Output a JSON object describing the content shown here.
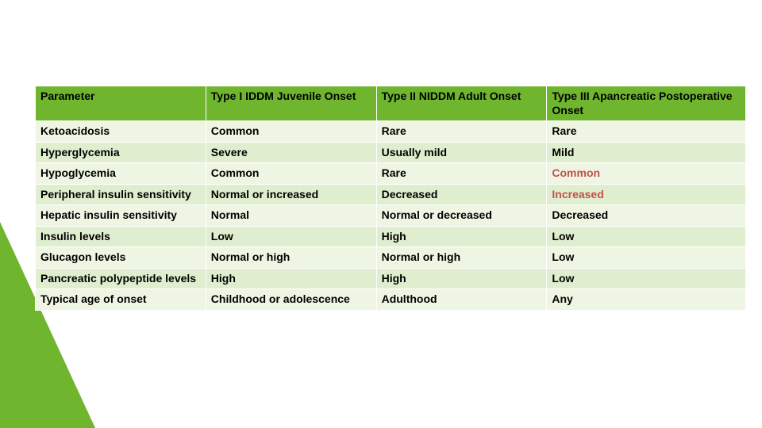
{
  "theme": {
    "accent_green": "#6fb52e",
    "row_odd_bg": "#eef6e3",
    "row_even_bg": "#dfeece",
    "accent_text": "#c0504d",
    "text_color": "#000000",
    "background": "#ffffff",
    "font_family": "Verdana",
    "header_font_size_pt": 11,
    "cell_font_size_pt": 11
  },
  "table": {
    "type": "table",
    "column_widths_pct": [
      24,
      24,
      24,
      28
    ],
    "columns": [
      "Parameter",
      "Type I IDDM Juvenile Onset",
      "Type II NIDDM Adult Onset",
      "Type III Apancreatic Postoperative Onset"
    ],
    "rows": [
      {
        "cells": [
          "Ketoacidosis",
          "Common",
          "Rare",
          "Rare"
        ],
        "accent": [
          false,
          false,
          false,
          false
        ]
      },
      {
        "cells": [
          "Hyperglycemia",
          "Severe",
          "Usually mild",
          "Mild"
        ],
        "accent": [
          false,
          false,
          false,
          false
        ]
      },
      {
        "cells": [
          "Hypoglycemia",
          "Common",
          "Rare",
          "Common"
        ],
        "accent": [
          false,
          false,
          false,
          true
        ]
      },
      {
        "cells": [
          "Peripheral insulin sensitivity",
          "Normal or increased",
          "Decreased",
          "Increased"
        ],
        "accent": [
          false,
          false,
          false,
          true
        ]
      },
      {
        "cells": [
          "Hepatic insulin sensitivity",
          "Normal",
          "Normal or decreased",
          "Decreased"
        ],
        "accent": [
          false,
          false,
          false,
          false
        ]
      },
      {
        "cells": [
          "Insulin levels",
          "Low",
          "High",
          "Low"
        ],
        "accent": [
          false,
          false,
          false,
          false
        ]
      },
      {
        "cells": [
          "Glucagon levels",
          "Normal or high",
          "Normal or high",
          "Low"
        ],
        "accent": [
          false,
          false,
          false,
          false
        ]
      },
      {
        "cells": [
          "Pancreatic polypeptide levels",
          "High",
          "High",
          "Low"
        ],
        "accent": [
          false,
          false,
          false,
          false
        ]
      },
      {
        "cells": [
          "Typical age of onset",
          "Childhood or adolescence",
          "Adulthood",
          "Any"
        ],
        "accent": [
          false,
          false,
          false,
          false
        ]
      }
    ]
  }
}
